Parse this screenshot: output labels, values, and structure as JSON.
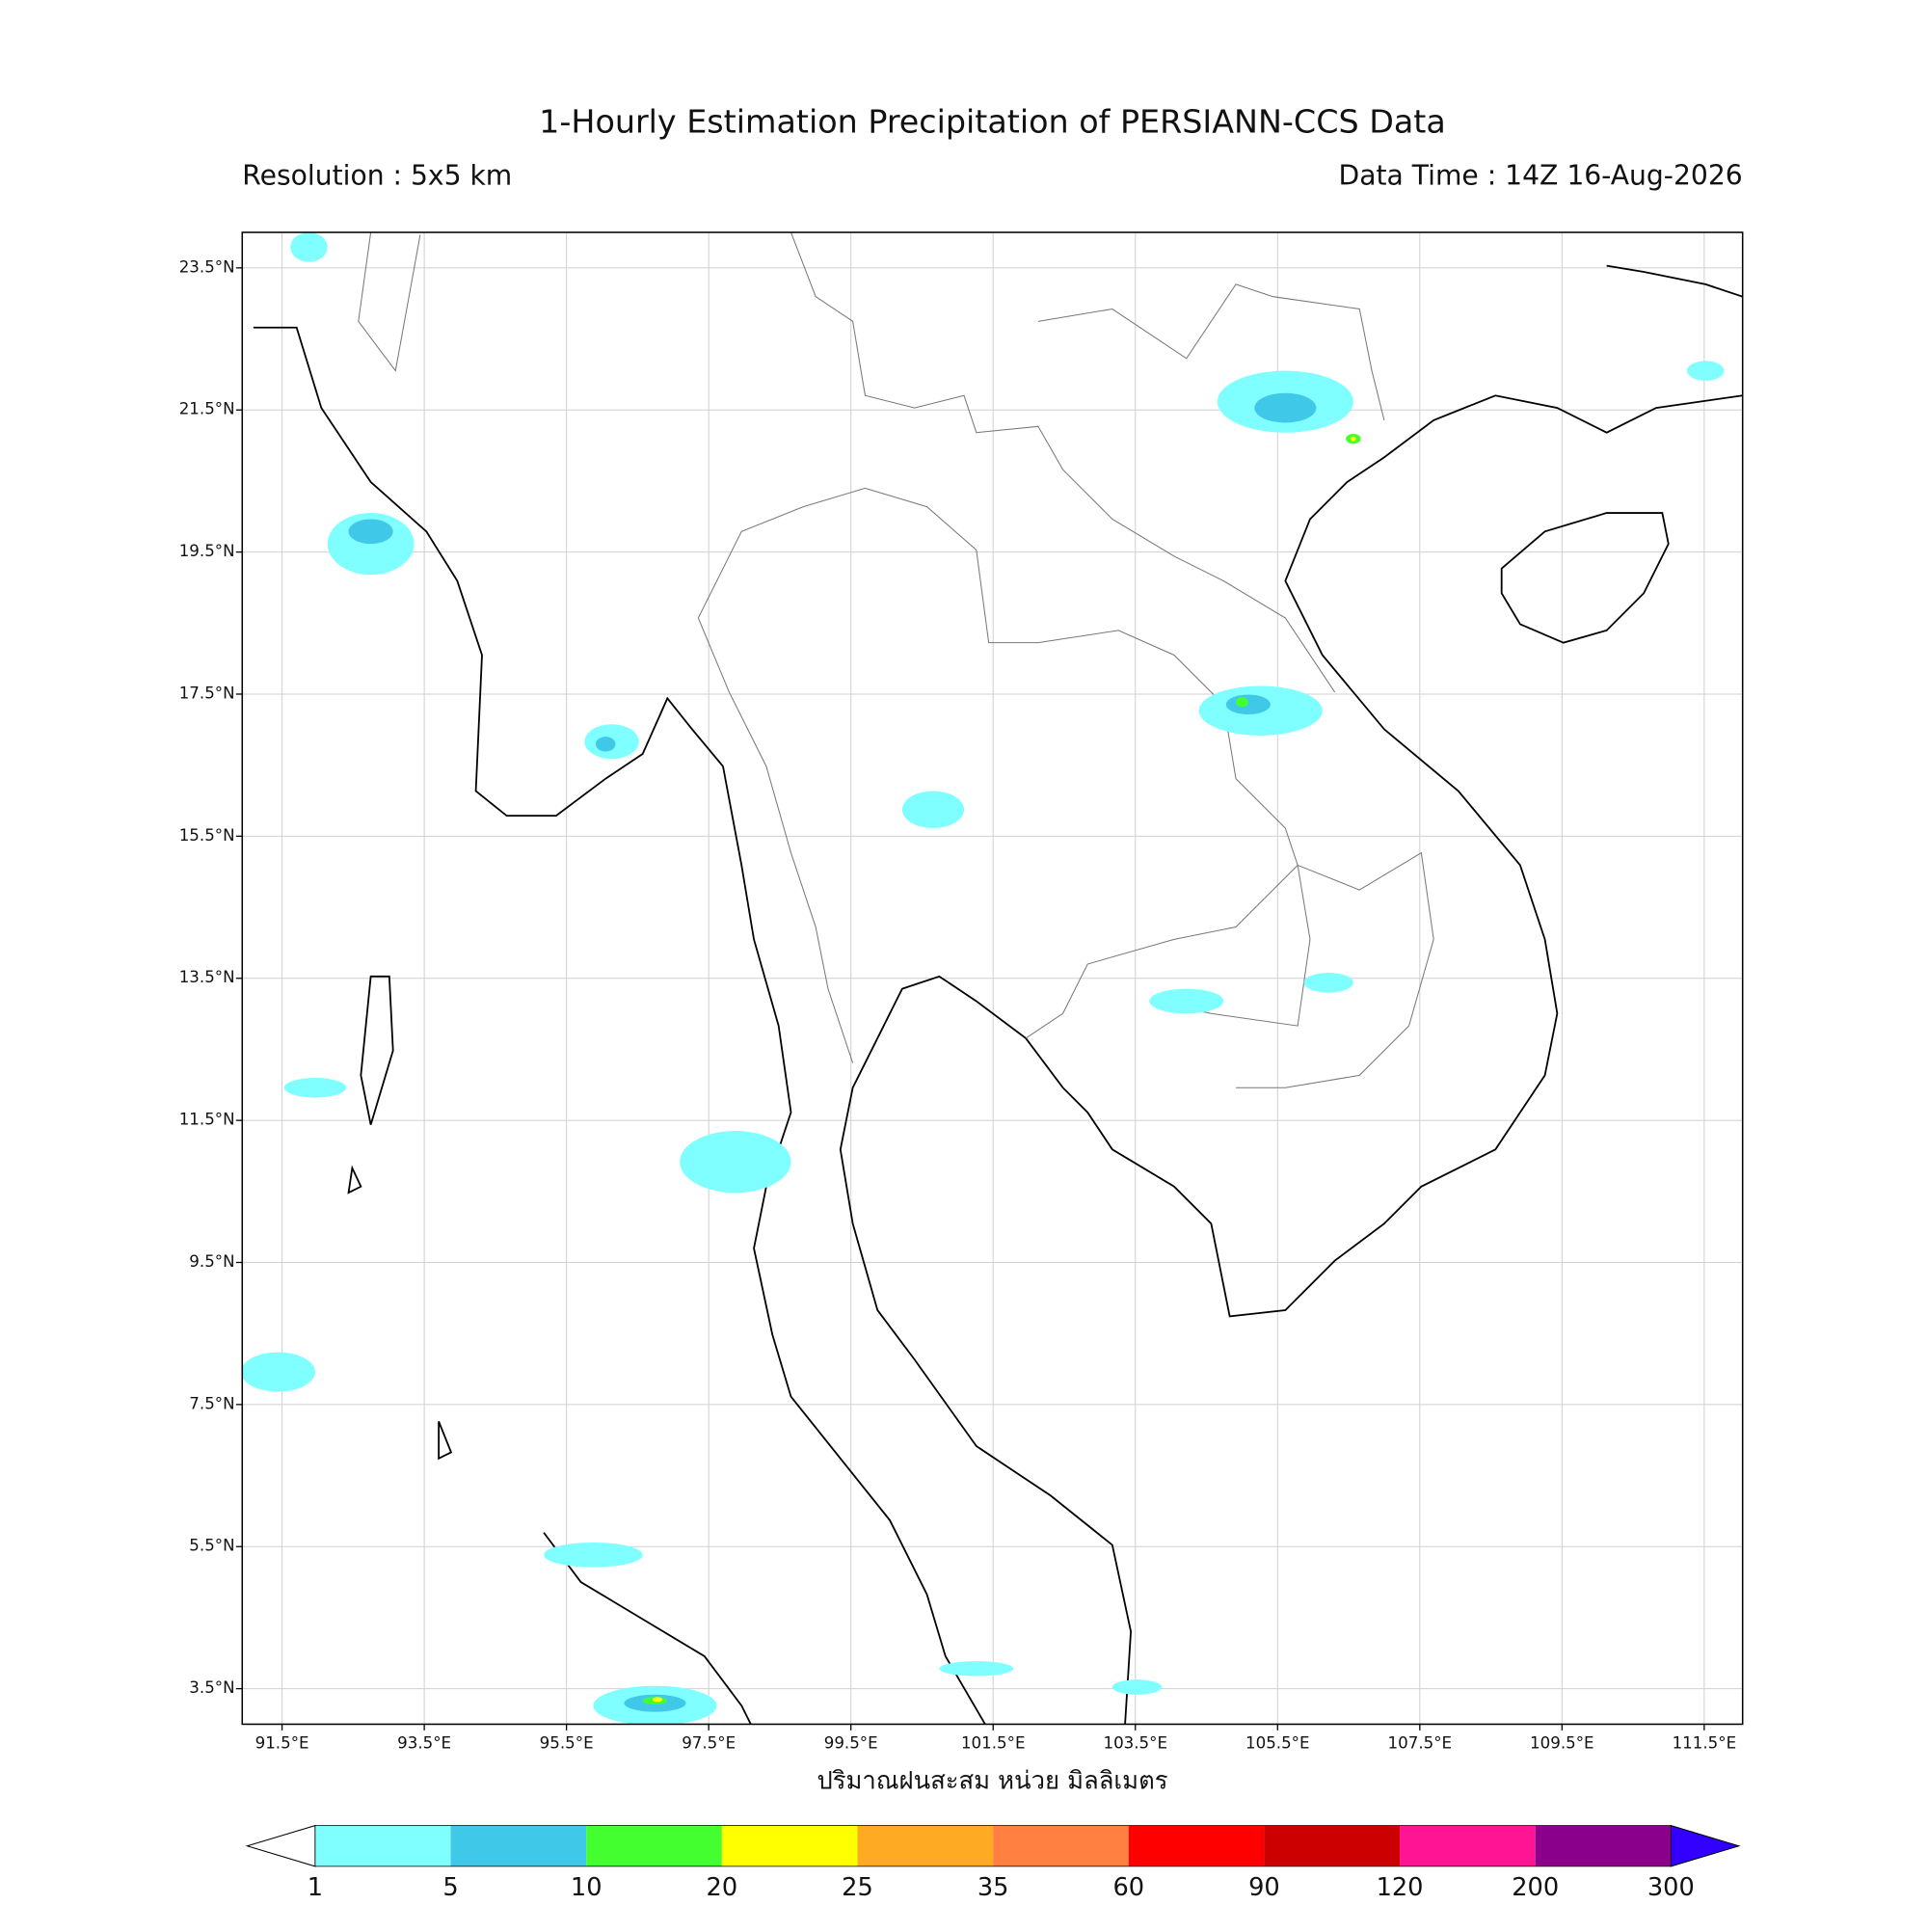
{
  "title": "1-Hourly Estimation Precipitation of PERSIANN-CCS Data",
  "resolution": "Resolution : 5x5 km",
  "data_time": "Data Time : 14Z 16-Aug-2026",
  "map": {
    "xlim": [
      90.94,
      112.04
    ],
    "ylim": [
      3.0,
      24.0
    ],
    "xticks": [
      {
        "value": 91.5,
        "label": "91.5°E"
      },
      {
        "value": 93.5,
        "label": "93.5°E"
      },
      {
        "value": 95.5,
        "label": "95.5°E"
      },
      {
        "value": 97.5,
        "label": "97.5°E"
      },
      {
        "value": 99.5,
        "label": "99.5°E"
      },
      {
        "value": 101.5,
        "label": "101.5°E"
      },
      {
        "value": 103.5,
        "label": "103.5°E"
      },
      {
        "value": 105.5,
        "label": "105.5°E"
      },
      {
        "value": 107.5,
        "label": "107.5°E"
      },
      {
        "value": 109.5,
        "label": "109.5°E"
      },
      {
        "value": 111.5,
        "label": "111.5°E"
      }
    ],
    "yticks": [
      {
        "value": 23.5,
        "label": "23.5°N"
      },
      {
        "value": 21.5,
        "label": "21.5°N"
      },
      {
        "value": 19.5,
        "label": "19.5°N"
      },
      {
        "value": 17.5,
        "label": "17.5°N"
      },
      {
        "value": 15.5,
        "label": "15.5°N"
      },
      {
        "value": 13.5,
        "label": "13.5°N"
      },
      {
        "value": 11.5,
        "label": "11.5°N"
      },
      {
        "value": 9.5,
        "label": "9.5°N"
      },
      {
        "value": 7.5,
        "label": "7.5°N"
      },
      {
        "value": 5.5,
        "label": "5.5°N"
      },
      {
        "value": 3.5,
        "label": "3.5°N"
      }
    ],
    "grid": true,
    "xlabel": "ปริมาณฝนสะสม หน่วย มิลลิเมตร"
  },
  "colorbar": {
    "levels": [
      1,
      5,
      10,
      20,
      25,
      35,
      60,
      90,
      120,
      200,
      300
    ],
    "colors": [
      "#7fffff",
      "#40c8e8",
      "#44ff2f",
      "#ffff00",
      "#ffaa22",
      "#ff8040",
      "#ff0000",
      "#cc0000",
      "#ff1493",
      "#8b008b"
    ],
    "under_color": "#ffffff",
    "over_color": "#3300ff"
  }
}
